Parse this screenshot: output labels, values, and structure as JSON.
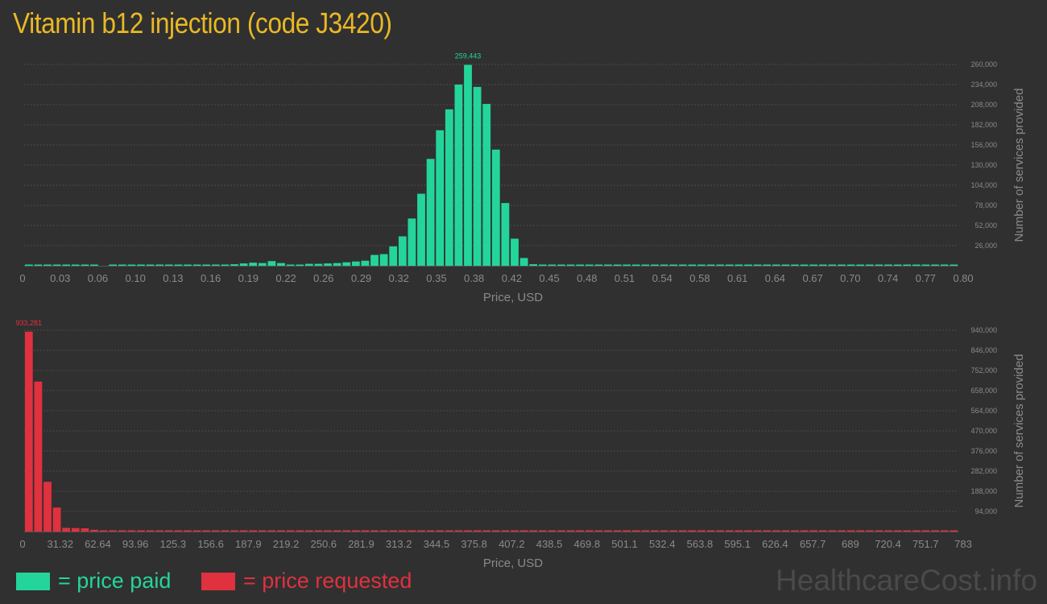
{
  "title": "Vitamin b12 injection (code J3420)",
  "legend": {
    "paid": "= price paid",
    "requested": "= price requested"
  },
  "watermark": "HealthcareCost.info",
  "colors": {
    "background": "#303030",
    "title": "#e9b825",
    "paid": "#24d59b",
    "requested": "#e0313f",
    "axis_text": "#8a8a8a",
    "grid": "#4a4a4a"
  },
  "chart_data": [
    {
      "type": "bar",
      "name": "price paid",
      "xlabel": "Price, USD",
      "ylabel": "Number of services provided",
      "xlim": [
        0,
        0.8
      ],
      "ylim": [
        0,
        260000
      ],
      "x_ticks": [
        "0",
        "0.03",
        "0.06",
        "0.10",
        "0.13",
        "0.16",
        "0.19",
        "0.22",
        "0.26",
        "0.29",
        "0.32",
        "0.35",
        "0.38",
        "0.42",
        "0.45",
        "0.48",
        "0.51",
        "0.54",
        "0.58",
        "0.61",
        "0.64",
        "0.67",
        "0.70",
        "0.74",
        "0.77",
        "0.80"
      ],
      "y_ticks": [
        "26,000",
        "52,000",
        "78,000",
        "104,000",
        "130,000",
        "156,000",
        "182,000",
        "208,000",
        "234,000",
        "260,000"
      ],
      "peak_label": "259,443",
      "bin_width": 0.008,
      "values": [
        1500,
        1200,
        1000,
        1000,
        800,
        800,
        600,
        500,
        0,
        500,
        400,
        400,
        400,
        300,
        300,
        300,
        300,
        300,
        300,
        300,
        300,
        1500,
        2000,
        3000,
        4000,
        3500,
        6000,
        3500,
        1500,
        1500,
        2500,
        2500,
        3000,
        3500,
        4500,
        5500,
        6500,
        14000,
        15000,
        25000,
        38000,
        61000,
        93000,
        138000,
        175000,
        202000,
        234000,
        259443,
        231000,
        209000,
        150000,
        81000,
        35000,
        10000,
        2000,
        1000,
        700,
        500,
        400,
        300,
        300,
        300,
        300,
        200,
        200,
        300,
        300,
        200,
        200,
        200,
        200,
        200,
        200,
        200,
        200,
        200,
        200,
        200,
        200,
        200,
        200,
        200,
        200,
        200,
        200,
        200,
        200,
        200,
        200,
        200,
        200,
        200,
        200,
        200,
        200,
        200,
        200,
        200,
        200,
        200
      ]
    },
    {
      "type": "bar",
      "name": "price requested",
      "xlabel": "Price, USD",
      "ylabel": "Number of services provided",
      "xlim": [
        0,
        783
      ],
      "ylim": [
        0,
        940000
      ],
      "x_ticks": [
        "0",
        "31.32",
        "62.64",
        "93.96",
        "125.3",
        "156.6",
        "187.9",
        "219.2",
        "250.6",
        "281.9",
        "313.2",
        "344.5",
        "375.8",
        "407.2",
        "438.5",
        "469.8",
        "501.1",
        "532.4",
        "563.8",
        "595.1",
        "626.4",
        "657.7",
        "689",
        "720.4",
        "751.7",
        "783"
      ],
      "y_ticks": [
        "94,000",
        "188,000",
        "282,000",
        "376,000",
        "470,000",
        "564,000",
        "658,000",
        "752,000",
        "846,000",
        "940,000"
      ],
      "peak_label": "933,281",
      "bin_width": 7.83,
      "values": [
        933281,
        700000,
        232000,
        112000,
        17000,
        16000,
        15000,
        8000,
        4000,
        3000,
        3000,
        2500,
        2500,
        2000,
        2000,
        2000,
        2000,
        2000,
        1500,
        1500,
        1500,
        1200,
        1200,
        1000,
        1000,
        800,
        800,
        800,
        700,
        700,
        600,
        600,
        600,
        600,
        600,
        600,
        600,
        600,
        600,
        4000,
        500,
        500,
        500,
        500,
        500,
        500,
        500,
        500,
        500,
        500,
        500,
        500,
        500,
        500,
        500,
        500,
        500,
        500,
        500,
        500,
        500,
        500,
        500,
        500,
        500,
        500,
        500,
        500,
        500,
        500,
        500,
        500,
        500,
        500,
        500,
        500,
        500,
        500,
        500,
        500,
        500,
        500,
        500,
        500,
        500,
        500,
        500,
        500,
        500,
        500,
        500,
        500,
        500,
        500,
        500,
        500,
        500,
        500,
        500,
        3000
      ]
    }
  ]
}
